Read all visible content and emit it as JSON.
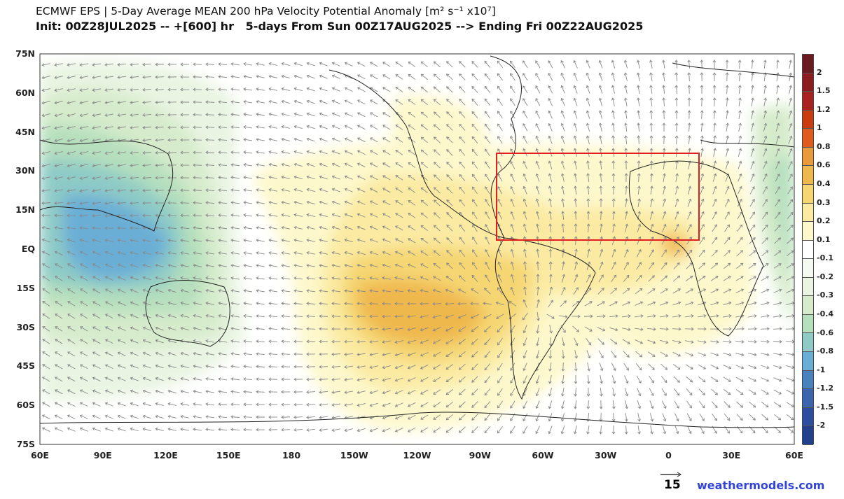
{
  "title": {
    "line1": "ECMWF EPS | 5-Day Average MEAN 200 hPa Velocity Potential Anomaly [m² s⁻¹ x10⁷]",
    "line2": "Init: 00Z28JUL2025 -- +[600] hr   5-days From Sun 00Z17AUG2025 --> Ending Fri 00Z22AUG2025"
  },
  "axes": {
    "lat_labels": [
      "75N",
      "60N",
      "45N",
      "30N",
      "15N",
      "EQ",
      "15S",
      "30S",
      "45S",
      "60S",
      "75S"
    ],
    "lon_labels": [
      "60E",
      "90E",
      "120E",
      "150E",
      "180",
      "150W",
      "120W",
      "90W",
      "60W",
      "30W",
      "0",
      "30E",
      "60E"
    ]
  },
  "colorbar": {
    "colors": [
      "#6b1a1f",
      "#8b1c1f",
      "#a8231f",
      "#c93c10",
      "#e05a20",
      "#e89a3c",
      "#efb84e",
      "#f5d672",
      "#fbeaa2",
      "#fdf8cc",
      "#ffffff",
      "#f5faf0",
      "#e9f4e2",
      "#d5ebcb",
      "#b5dfbd",
      "#8ecbc6",
      "#6aaed6",
      "#4a82be",
      "#3b66ad",
      "#2c4e9e",
      "#23408c"
    ],
    "labels": [
      "2",
      "1.5",
      "1.2",
      "1",
      "0.8",
      "0.6",
      "0.4",
      "0.3",
      "0.2",
      "0.1",
      "-0.1",
      "-0.2",
      "-0.3",
      "-0.4",
      "-0.6",
      "-0.8",
      "-1",
      "-1.2",
      "-1.5",
      "-2"
    ]
  },
  "highlight_box_color": "#e02020",
  "vector_reference": "15",
  "credit": "weathermodels.com"
}
